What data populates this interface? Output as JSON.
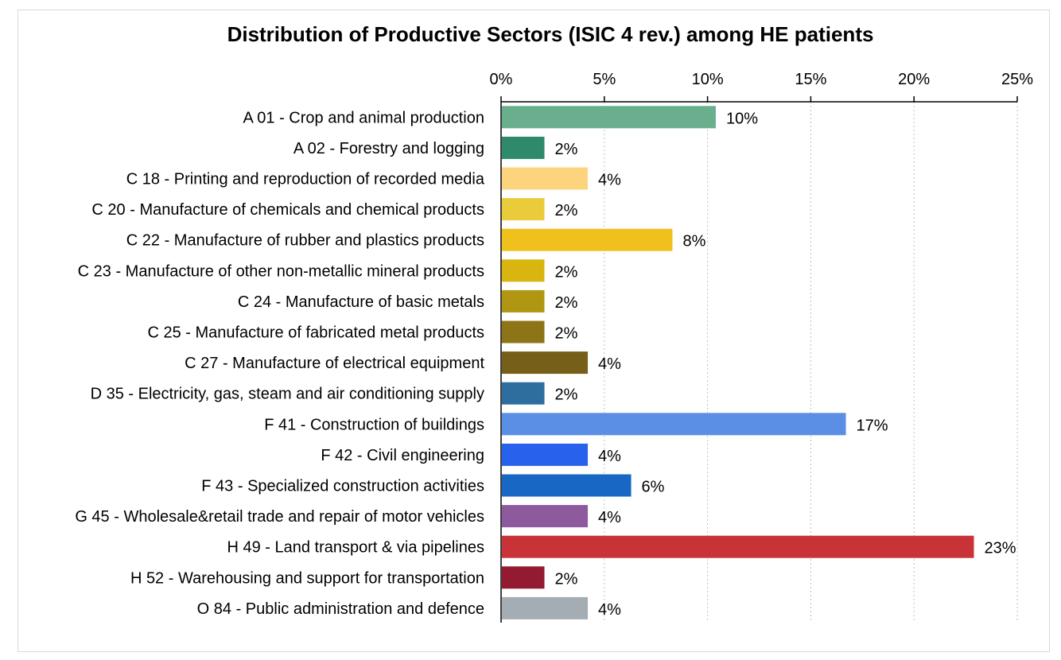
{
  "chart_data": {
    "type": "bar",
    "orientation": "horizontal",
    "title": "Distribution of Productive Sectors (ISIC 4 rev.) among HE patients",
    "xlabel": "",
    "ylabel": "",
    "xlim": [
      0,
      25
    ],
    "x_ticks": [
      0,
      5,
      10,
      15,
      20,
      25
    ],
    "x_tick_labels": [
      "0%",
      "5%",
      "10%",
      "15%",
      "20%",
      "25%"
    ],
    "x_axis_position": "top",
    "grid": "vertical dotted",
    "legend": "none",
    "categories": [
      "A 01 - Crop and animal production",
      "A 02 - Forestry and logging",
      "C 18 - Printing and reproduction of recorded media",
      "C 20 - Manufacture of chemicals and chemical products",
      "C 22 - Manufacture of rubber and plastics products",
      "C 23 - Manufacture of other non-metallic mineral products",
      "C 24 - Manufacture of basic metals",
      "C 25 - Manufacture of fabricated metal products",
      "C 27 - Manufacture of electrical equipment",
      "D 35 - Electricity, gas, steam and air conditioning supply",
      "F 41 - Construction of buildings",
      "F 42 - Civil engineering",
      "F 43 - Specialized construction activities",
      "G 45 - Wholesale&retail trade and repair of motor vehicles",
      "H 49 - Land transport & via pipelines",
      "H 52 - Warehousing and support for transportation",
      "O 84 - Public administration and defence"
    ],
    "values": [
      10.4,
      2.1,
      4.2,
      2.1,
      8.3,
      2.1,
      2.1,
      2.1,
      4.2,
      2.1,
      16.7,
      4.2,
      6.3,
      4.2,
      22.9,
      2.1,
      4.2
    ],
    "value_labels": [
      "10%",
      "2%",
      "4%",
      "2%",
      "8%",
      "2%",
      "2%",
      "2%",
      "4%",
      "2%",
      "17%",
      "4%",
      "6%",
      "4%",
      "23%",
      "2%",
      "4%"
    ],
    "colors": [
      "#6aaf8d",
      "#2e8a6b",
      "#fdd47e",
      "#eacb3c",
      "#f0c11c",
      "#d8b60f",
      "#b19614",
      "#8c7417",
      "#765f18",
      "#2d6e9e",
      "#5b8fe6",
      "#2861eb",
      "#1967c4",
      "#8e5a9e",
      "#c73336",
      "#931a30",
      "#a3adb3"
    ]
  }
}
